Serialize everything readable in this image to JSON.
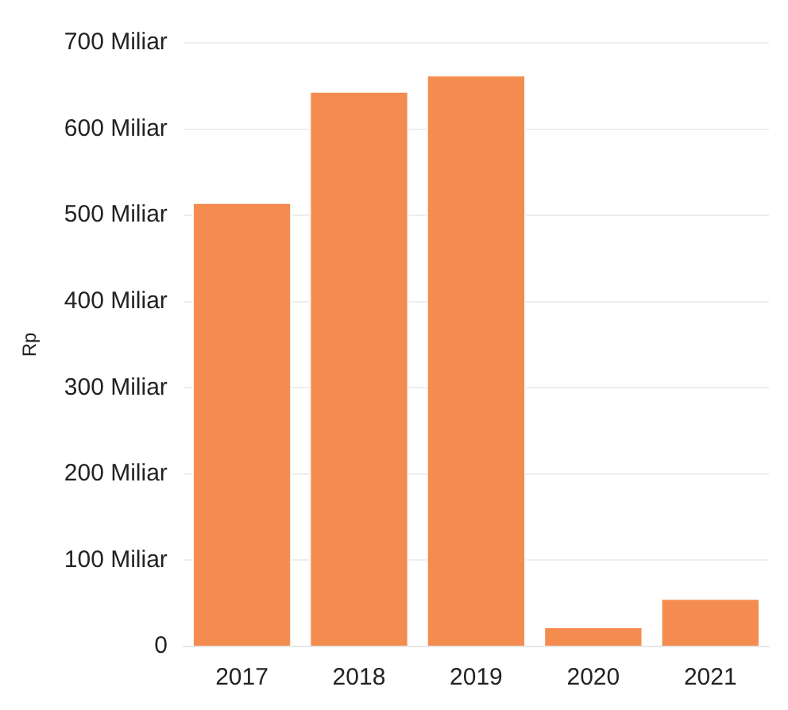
{
  "chart_data": {
    "type": "bar",
    "ylabel": "Rp",
    "categories": [
      "2017",
      "2018",
      "2019",
      "2020",
      "2021"
    ],
    "values": [
      515,
      644,
      663,
      23,
      56
    ],
    "color": "#f48c4f",
    "ylim": [
      0,
      700
    ],
    "yticks": [
      0,
      {
        "value": 100,
        "label": "100 Miliar"
      },
      {
        "value": 200,
        "label": "200 Miliar"
      },
      {
        "value": 300,
        "label": "300 Miliar"
      },
      {
        "value": 400,
        "label": "400 Miliar"
      },
      {
        "value": 500,
        "label": "500 Miliar"
      },
      {
        "value": 600,
        "label": "600 Miliar"
      },
      {
        "value": 700,
        "label": "700 Miliar"
      }
    ],
    "grid": "y"
  }
}
